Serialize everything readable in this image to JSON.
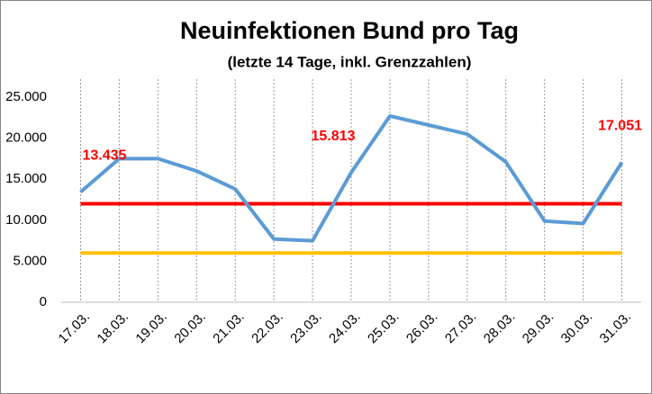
{
  "chart_data": {
    "type": "line",
    "title": "Neuinfektionen Bund pro Tag",
    "subtitle": "(letzte 14 Tage, inkl. Grenzzahlen)",
    "categories": [
      "17.03.",
      "18.03.",
      "19.03.",
      "20.03.",
      "21.03.",
      "22.03.",
      "23.03.",
      "24.03.",
      "25.03.",
      "26.03.",
      "27.03.",
      "28.03.",
      "29.03.",
      "30.03.",
      "31.03."
    ],
    "series": [
      {
        "color": "#5b9bd5",
        "values": [
          13435,
          17500,
          17500,
          16000,
          13800,
          7700,
          7500,
          15813,
          22700,
          21600,
          20500,
          17100,
          9900,
          9600,
          17051
        ],
        "value_labels": [
          "13.435",
          null,
          null,
          null,
          null,
          null,
          null,
          "15.813",
          null,
          null,
          null,
          null,
          null,
          null,
          "17.051"
        ],
        "value_label_color": "#ff0000"
      },
      {
        "color": "#ff0000",
        "values": [
          12000,
          12000,
          12000,
          12000,
          12000,
          12000,
          12000,
          12000,
          12000,
          12000,
          12000,
          12000,
          12000,
          12000,
          12000
        ]
      },
      {
        "color": "#ffc000",
        "values": [
          6000,
          6000,
          6000,
          6000,
          6000,
          6000,
          6000,
          6000,
          6000,
          6000,
          6000,
          6000,
          6000,
          6000,
          6000
        ]
      }
    ],
    "ylim": [
      0,
      25000
    ],
    "yticks": [
      0,
      {
        "value": 5000,
        "label": "5.000"
      },
      {
        "value": 10000,
        "label": "10.000"
      },
      {
        "value": 15000,
        "label": "15.000"
      },
      {
        "value": 20000,
        "label": "20.000"
      },
      {
        "value": 25000,
        "label": "25.000"
      }
    ],
    "grid": "x"
  }
}
